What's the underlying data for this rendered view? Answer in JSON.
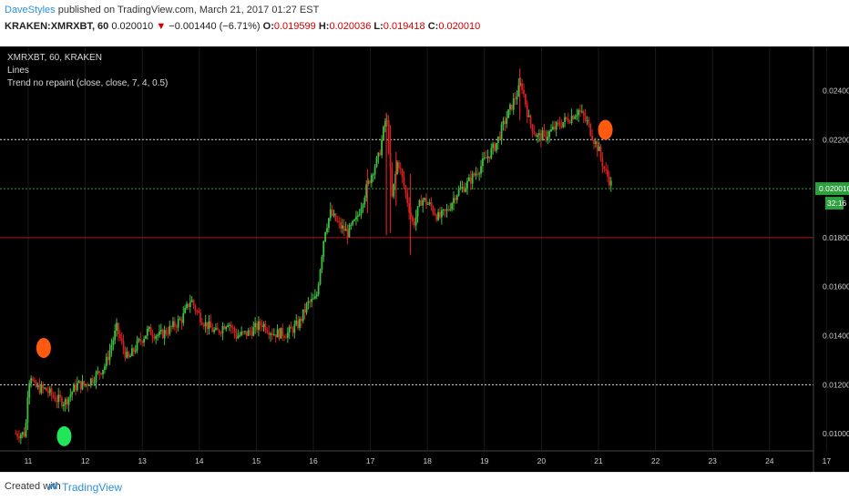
{
  "header": {
    "author": "DaveStyles",
    "published": "published on TradingView.com, March 21, 2017 01:27 EST",
    "symbol": "KRAKEN:XMRXBT, 60",
    "last": "0.020010",
    "change": "−0.001440 (−6.71%)",
    "o_label": "O:",
    "o_value": "0.019599",
    "h_label": "H:",
    "h_value": "0.020036",
    "l_label": "L:",
    "l_value": "0.019418",
    "c_label": "C:",
    "c_value": "0.020010"
  },
  "legend": {
    "line1": "XMRXBT, 60, KRAKEN",
    "line2": "Lines",
    "line3": "Trend no repaint (close, close, 7, 4, 0.5)"
  },
  "footer": {
    "created": "Created with",
    "brand": "TradingView"
  },
  "colors": {
    "up": "#3fbf3f",
    "down": "#d42020",
    "background": "#000000",
    "marker_red": "#ff5a10",
    "marker_green": "#22e65a"
  },
  "icons": {
    "logo": "tradingview-cloud-icon",
    "change": "down-triangle-icon"
  },
  "chart_data": {
    "type": "candlestick",
    "x_ticks": [
      "11",
      "12",
      "13",
      "14",
      "15",
      "16",
      "17",
      "18",
      "19",
      "20",
      "21",
      "22",
      "23",
      "24",
      "17"
    ],
    "y_ticks": [
      "0.010000",
      "0.012000",
      "0.014000",
      "0.016000",
      "0.018000",
      "0.022000",
      "0.024000"
    ],
    "ylim": [
      0.0093,
      0.0258
    ],
    "price_label": "0.020010",
    "timer_label": "32:16",
    "horizontal_lines": [
      {
        "value": 0.022,
        "style": "white-dotted"
      },
      {
        "value": 0.02,
        "style": "green-dotted"
      },
      {
        "value": 0.018,
        "style": "red-solid"
      },
      {
        "value": 0.012,
        "style": "white-dotted"
      }
    ],
    "markers": [
      {
        "x": 11.27,
        "value": 0.0135,
        "color": "red"
      },
      {
        "x": 21.12,
        "value": 0.0224,
        "color": "red"
      },
      {
        "x": 11.63,
        "value": 0.0099,
        "color": "green"
      }
    ],
    "path_points": [
      [
        10.78,
        0.01
      ],
      [
        10.95,
        0.01
      ],
      [
        11.0,
        0.0121
      ],
      [
        11.05,
        0.0124
      ],
      [
        11.1,
        0.0119
      ],
      [
        11.3,
        0.0118
      ],
      [
        11.5,
        0.0114
      ],
      [
        11.65,
        0.0113
      ],
      [
        11.85,
        0.012
      ],
      [
        12.0,
        0.012
      ],
      [
        12.2,
        0.0124
      ],
      [
        12.35,
        0.0128
      ],
      [
        12.55,
        0.0143
      ],
      [
        12.65,
        0.0136
      ],
      [
        12.75,
        0.013
      ],
      [
        12.9,
        0.0136
      ],
      [
        13.1,
        0.0142
      ],
      [
        13.3,
        0.014
      ],
      [
        13.5,
        0.0143
      ],
      [
        13.7,
        0.0147
      ],
      [
        13.85,
        0.0155
      ],
      [
        13.95,
        0.015
      ],
      [
        14.1,
        0.0145
      ],
      [
        14.3,
        0.0141
      ],
      [
        14.5,
        0.0146
      ],
      [
        14.65,
        0.014
      ],
      [
        14.85,
        0.0141
      ],
      [
        15.1,
        0.0145
      ],
      [
        15.3,
        0.0141
      ],
      [
        15.55,
        0.0141
      ],
      [
        15.75,
        0.0145
      ],
      [
        15.9,
        0.0153
      ],
      [
        16.05,
        0.0155
      ],
      [
        16.2,
        0.0183
      ],
      [
        16.3,
        0.019
      ],
      [
        16.45,
        0.0185
      ],
      [
        16.6,
        0.0182
      ],
      [
        16.75,
        0.0187
      ],
      [
        16.9,
        0.0198
      ],
      [
        17.05,
        0.0208
      ],
      [
        17.15,
        0.0213
      ],
      [
        17.28,
        0.023
      ],
      [
        17.38,
        0.0196
      ],
      [
        17.48,
        0.0212
      ],
      [
        17.6,
        0.02
      ],
      [
        17.75,
        0.0185
      ],
      [
        17.9,
        0.0196
      ],
      [
        18.05,
        0.0193
      ],
      [
        18.2,
        0.0188
      ],
      [
        18.35,
        0.0191
      ],
      [
        18.5,
        0.0198
      ],
      [
        18.7,
        0.0202
      ],
      [
        18.9,
        0.0208
      ],
      [
        19.05,
        0.0213
      ],
      [
        19.2,
        0.0218
      ],
      [
        19.35,
        0.0227
      ],
      [
        19.5,
        0.0235
      ],
      [
        19.65,
        0.0243
      ],
      [
        19.78,
        0.0228
      ],
      [
        19.92,
        0.0221
      ],
      [
        20.1,
        0.0222
      ],
      [
        20.3,
        0.0226
      ],
      [
        20.5,
        0.0229
      ],
      [
        20.65,
        0.0232
      ],
      [
        20.8,
        0.0227
      ],
      [
        20.92,
        0.022
      ],
      [
        21.0,
        0.0216
      ],
      [
        21.1,
        0.0208
      ],
      [
        21.2,
        0.0203
      ],
      [
        21.25,
        0.02
      ]
    ]
  }
}
